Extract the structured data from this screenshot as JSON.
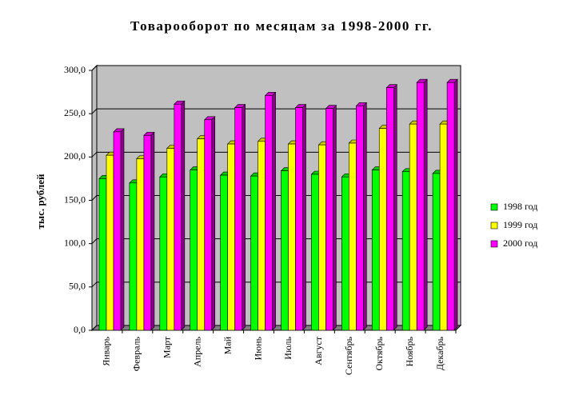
{
  "chart_data": {
    "type": "bar3d",
    "title": "Товарооборот по месяцам за 1998-2000 гг.",
    "y_label": "тыс. рублей",
    "categories": [
      "Январь",
      "Февраль",
      "Март",
      "Апрель",
      "Май",
      "Июнь",
      "Июль",
      "Август",
      "Сентябрь",
      "Октябрь",
      "Ноябрь",
      "Декабрь"
    ],
    "series": [
      {
        "name": "1998 год",
        "color": "#00ff00",
        "values": [
          175,
          170,
          177,
          185,
          179,
          178,
          184,
          180,
          177,
          185,
          183,
          181
        ]
      },
      {
        "name": "1999 год",
        "color": "#ffff00",
        "values": [
          202,
          198,
          210,
          221,
          215,
          218,
          215,
          214,
          216,
          233,
          238,
          238
        ]
      },
      {
        "name": "2000 год",
        "color": "#ff00ff",
        "values": [
          229,
          225,
          261,
          243,
          257,
          271,
          257,
          256,
          259,
          280,
          286,
          286
        ]
      }
    ],
    "ylim": [
      0,
      300
    ],
    "yticks": [
      {
        "value": 0,
        "label": "0,0"
      },
      {
        "value": 50,
        "label": "50,0"
      },
      {
        "value": 100,
        "label": "100,0"
      },
      {
        "value": 150,
        "label": "150,0"
      },
      {
        "value": 200,
        "label": "200,0"
      },
      {
        "value": 250,
        "label": "250,0"
      },
      {
        "value": 300,
        "label": "300,0"
      }
    ],
    "grid": true,
    "legend": "right",
    "wall_color": "#c0c0c0"
  }
}
